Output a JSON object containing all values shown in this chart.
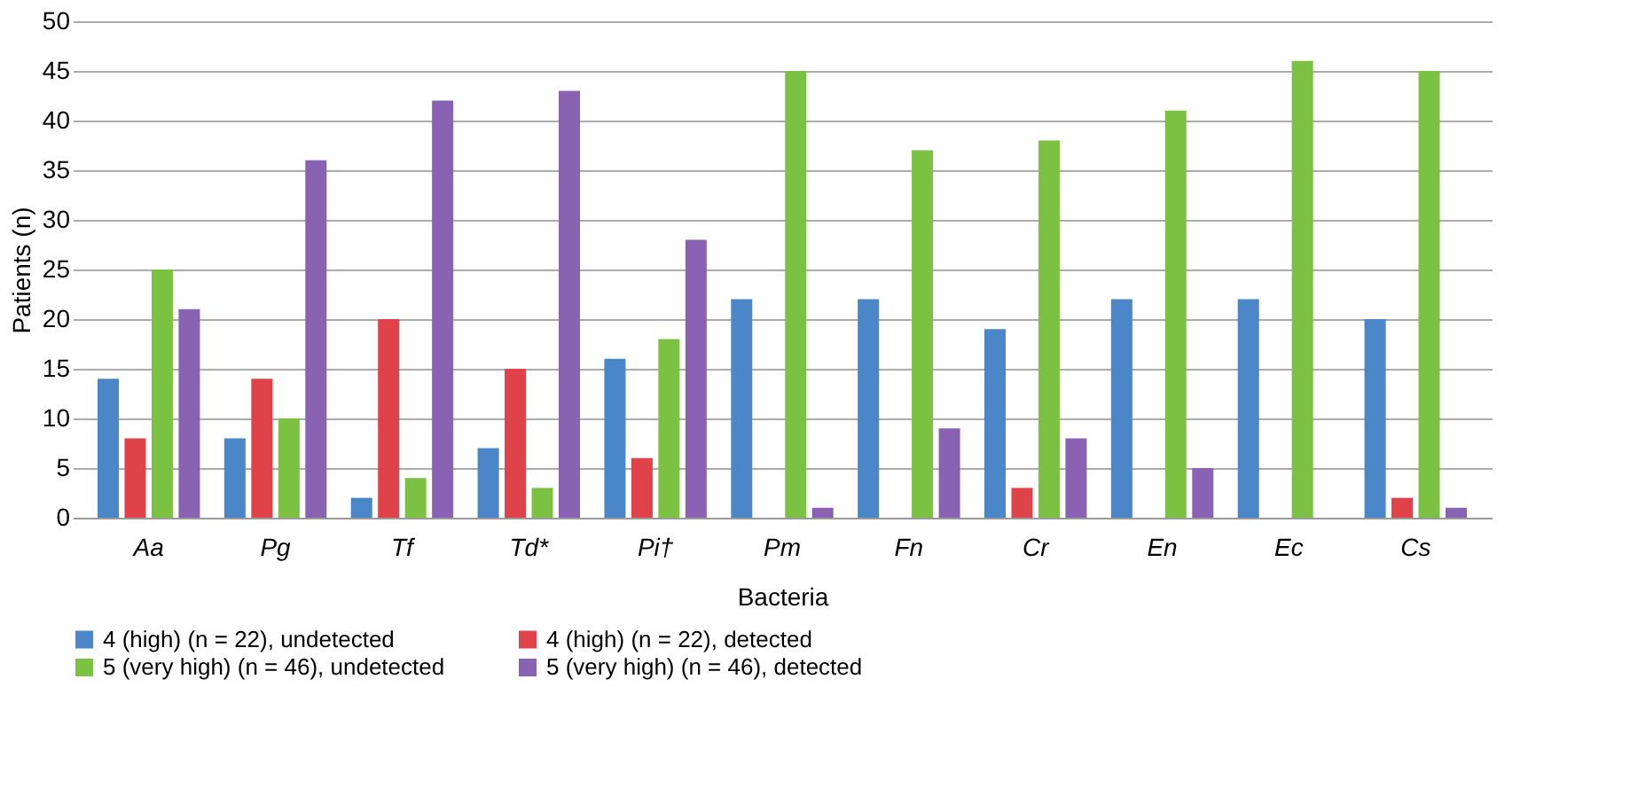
{
  "chart_data": {
    "type": "bar",
    "xlabel": "Bacteria",
    "ylabel": "Patients (n)",
    "categories": [
      "Aa",
      "Pg",
      "Tf",
      "Td*",
      "Pi†",
      "Pm",
      "Fn",
      "Cr",
      "En",
      "Ec",
      "Cs"
    ],
    "series": [
      {
        "name": "4 (high) (n = 22), undetected",
        "color": "#4a86c8",
        "values": [
          14,
          8,
          2,
          7,
          16,
          22,
          22,
          19,
          22,
          22,
          20
        ]
      },
      {
        "name": "4 (high) (n = 22), detected",
        "color": "#e0424a",
        "values": [
          8,
          14,
          20,
          15,
          6,
          0,
          0,
          3,
          0,
          0,
          2
        ]
      },
      {
        "name": "5 (very high) (n = 46), undetected",
        "color": "#7cc242",
        "values": [
          25,
          10,
          4,
          3,
          18,
          45,
          37,
          38,
          41,
          46,
          45
        ]
      },
      {
        "name": "5 (very high) (n = 46), detected",
        "color": "#8a62b4",
        "values": [
          21,
          36,
          42,
          43,
          28,
          1,
          9,
          8,
          5,
          0,
          1
        ]
      }
    ],
    "ylim": [
      0,
      50
    ],
    "yticks": [
      0,
      5,
      10,
      15,
      20,
      25,
      30,
      35,
      40,
      45,
      50
    ],
    "grid": "y",
    "legend": "bottom"
  }
}
